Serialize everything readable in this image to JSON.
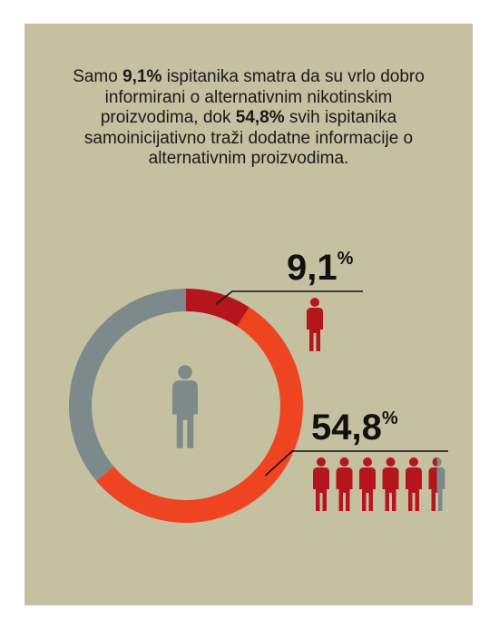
{
  "headline": {
    "p1": "Samo ",
    "v1": "9,1%",
    "p2": " ispitanika smatra da su vrlo dobro informirani o alternativnim nikotinskim proizvodima, dok ",
    "v2": "54,8%",
    "p3": " svih ispitanika samoinicijativno traži dodatne informacije o alternativnim proizvodima."
  },
  "chart_data": {
    "type": "pie",
    "donut": true,
    "total": 100,
    "segments": [
      {
        "value": 9.1,
        "color": "#b5161e",
        "label_number": "9,1",
        "label_unit": "%",
        "icon_count": 1,
        "icon_color": "#b5161e"
      },
      {
        "value": 54.8,
        "color": "#ee4422",
        "label_number": "54,8",
        "label_unit": "%",
        "icon_count": 5,
        "icon_color": "#b5161e",
        "icon_partial_color": "#7d8a8c"
      }
    ],
    "remainder_color": "#7d8a8c",
    "center_icon_color": "#7d8a8c",
    "colors": {
      "background": "#c5c0a0",
      "text": "#111111",
      "leader_line": "#111111"
    }
  }
}
